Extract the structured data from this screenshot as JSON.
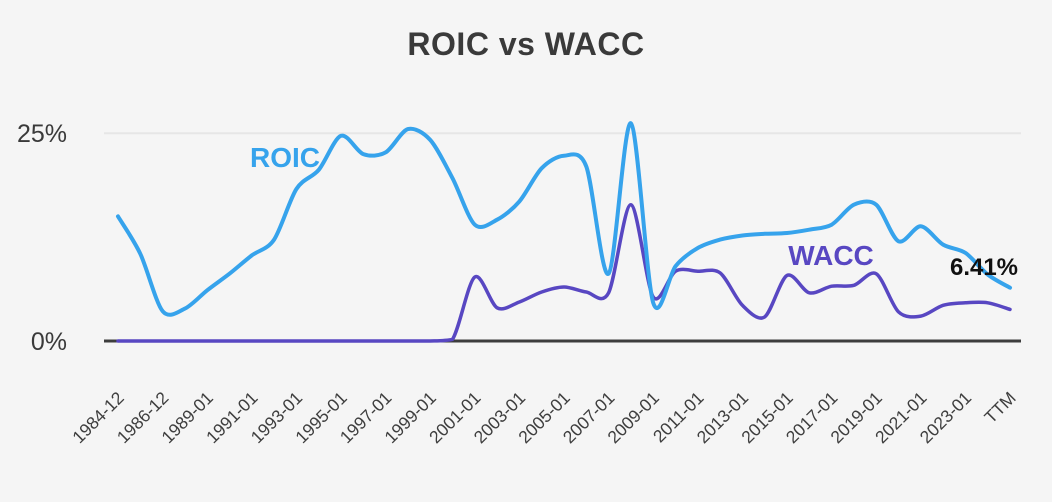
{
  "chart_data": {
    "type": "line",
    "title": "ROIC vs WACC",
    "xlabel": "",
    "ylabel": "",
    "ylim": [
      0,
      25
    ],
    "y_tick_labels": [
      "25%",
      "0%"
    ],
    "grid": "single light horizontal gridline at 25%, emphasized dark zero baseline",
    "legend_position": "inline labels next to lines",
    "x_tick_labels": [
      "1984-12",
      "1986-12",
      "1989-01",
      "1991-01",
      "1993-01",
      "1995-01",
      "1997-01",
      "1999-01",
      "2001-01",
      "2003-01",
      "2005-01",
      "2007-01",
      "2009-01",
      "2011-01",
      "2013-01",
      "2015-01",
      "2017-01",
      "2019-01",
      "2021-01",
      "2023-01",
      "TTM"
    ],
    "x": [
      "1984-12",
      "1985-12",
      "1986-12",
      "1988-01",
      "1989-01",
      "1990-01",
      "1991-01",
      "1992-01",
      "1993-01",
      "1994-01",
      "1995-01",
      "1996-01",
      "1997-01",
      "1998-01",
      "1999-01",
      "2000-01",
      "2001-01",
      "2002-01",
      "2003-01",
      "2004-01",
      "2005-01",
      "2006-01",
      "2007-01",
      "2008-01",
      "2009-01",
      "2010-01",
      "2011-01",
      "2012-01",
      "2013-01",
      "2014-01",
      "2015-01",
      "2016-01",
      "2017-01",
      "2018-01",
      "2019-01",
      "2020-01",
      "2021-01",
      "2022-01",
      "2023-01",
      "2024-01",
      "TTM"
    ],
    "series": [
      {
        "name": "ROIC",
        "color": "#36A3EC",
        "unit": "%",
        "values": [
          15.0,
          10.5,
          3.6,
          3.9,
          6.1,
          8.1,
          10.3,
          12.2,
          18.3,
          20.6,
          24.7,
          22.5,
          22.7,
          25.5,
          24.2,
          19.6,
          14.0,
          14.6,
          16.8,
          20.8,
          22.3,
          21.0,
          8.1,
          26.2,
          4.6,
          9.0,
          11.2,
          12.2,
          12.7,
          12.9,
          13.0,
          13.4,
          14.0,
          16.4,
          16.4,
          12.0,
          13.8,
          11.6,
          10.6,
          8.0,
          6.41
        ]
      },
      {
        "name": "WACC",
        "color": "#5847C2",
        "unit": "%",
        "values": [
          0,
          0,
          0,
          0,
          0,
          0,
          0,
          0,
          0,
          0,
          0,
          0,
          0,
          0,
          0,
          0.2,
          7.7,
          4.0,
          4.7,
          5.9,
          6.5,
          5.9,
          5.8,
          16.4,
          5.3,
          8.4,
          8.4,
          8.2,
          4.3,
          2.9,
          7.9,
          5.8,
          6.6,
          6.7,
          8.1,
          3.5,
          3.0,
          4.3,
          4.6,
          4.6,
          3.8
        ]
      }
    ],
    "annotations": {
      "roic_label": "ROIC",
      "wacc_label": "WACC",
      "end_value_label": "6.41%"
    },
    "end_label_color": "#111111"
  },
  "colors": {
    "background": "#F5F5F5",
    "gridline": "#E6E6E6",
    "axis": "#3D3D3D",
    "text": "#3A3A3A"
  }
}
